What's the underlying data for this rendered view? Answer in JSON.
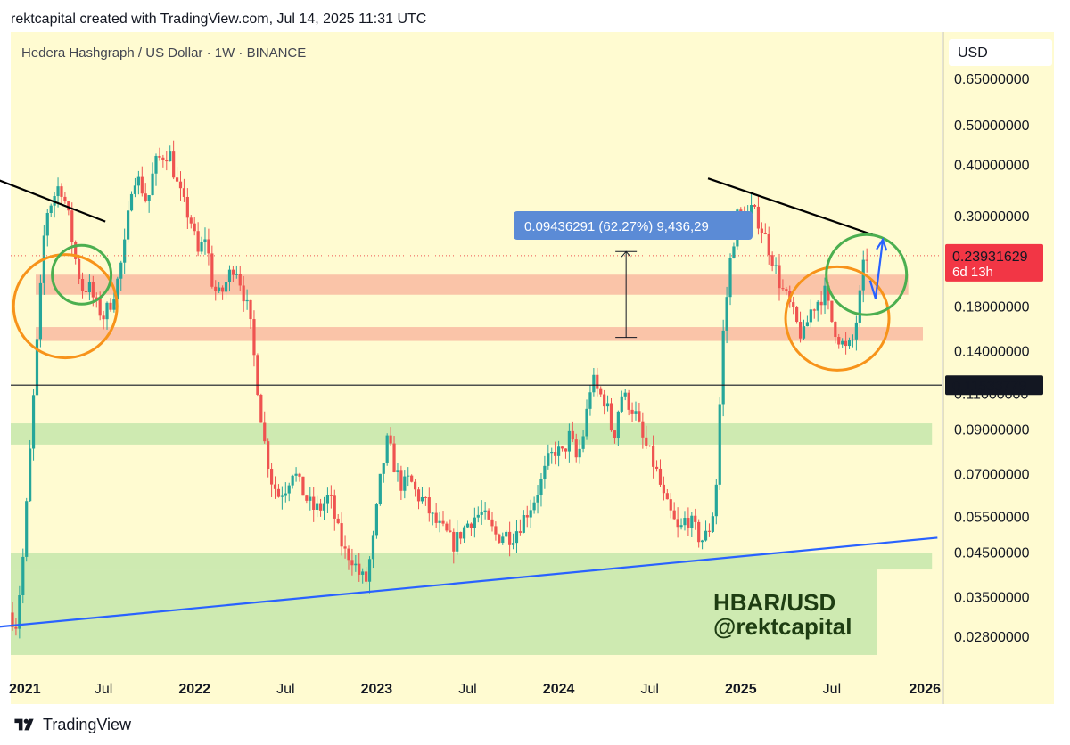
{
  "header": {
    "caption": "rektcapital created with TradingView.com, Jul 14, 2025 11:31 UTC"
  },
  "footer": {
    "brand": "TradingView"
  },
  "chart_data": {
    "type": "candlestick",
    "symbol_label": "Hedera Hashgraph / US Dollar · 1W · BINANCE",
    "currency": "USD",
    "scale": "log",
    "y_ticks": [
      {
        "label": "0.65000000",
        "value": 0.65
      },
      {
        "label": "0.50000000",
        "value": 0.5
      },
      {
        "label": "0.40000000",
        "value": 0.4
      },
      {
        "label": "0.30000000",
        "value": 0.3
      },
      {
        "label": "0.18000000",
        "value": 0.18
      },
      {
        "label": "0.14000000",
        "value": 0.14
      },
      {
        "label": "0.11000000",
        "value": 0.11
      },
      {
        "label": "0.09000000",
        "value": 0.09
      },
      {
        "label": "0.07000000",
        "value": 0.07
      },
      {
        "label": "0.05500000",
        "value": 0.055
      },
      {
        "label": "0.04500000",
        "value": 0.045
      },
      {
        "label": "0.03500000",
        "value": 0.035
      },
      {
        "label": "0.02800000",
        "value": 0.028
      }
    ],
    "x_ticks": [
      {
        "label": "2021",
        "t": 2021.0
      },
      {
        "label": "Jul",
        "t": 2021.5
      },
      {
        "label": "2022",
        "t": 2022.0
      },
      {
        "label": "Jul",
        "t": 2022.5
      },
      {
        "label": "2023",
        "t": 2023.0
      },
      {
        "label": "Jul",
        "t": 2023.5
      },
      {
        "label": "2024",
        "t": 2024.0
      },
      {
        "label": "Jul",
        "t": 2024.5
      },
      {
        "label": "2025",
        "t": 2025.0
      },
      {
        "label": "Jul",
        "t": 2025.5
      },
      {
        "label": "2026",
        "t": 2026.0
      }
    ],
    "price_path": [
      [
        2021.0,
        0.032
      ],
      [
        2021.04,
        0.03
      ],
      [
        2021.08,
        0.045
      ],
      [
        2021.12,
        0.085
      ],
      [
        2021.16,
        0.16
      ],
      [
        2021.2,
        0.3
      ],
      [
        2021.24,
        0.33
      ],
      [
        2021.28,
        0.36
      ],
      [
        2021.32,
        0.31
      ],
      [
        2021.36,
        0.24
      ],
      [
        2021.4,
        0.2
      ],
      [
        2021.44,
        0.2
      ],
      [
        2021.48,
        0.18
      ],
      [
        2021.52,
        0.17
      ],
      [
        2021.56,
        0.185
      ],
      [
        2021.6,
        0.21
      ],
      [
        2021.64,
        0.26
      ],
      [
        2021.68,
        0.38
      ],
      [
        2021.72,
        0.36
      ],
      [
        2021.76,
        0.32
      ],
      [
        2021.8,
        0.4
      ],
      [
        2021.84,
        0.42
      ],
      [
        2021.88,
        0.43
      ],
      [
        2021.92,
        0.36
      ],
      [
        2021.96,
        0.32
      ],
      [
        2022.0,
        0.29
      ],
      [
        2022.04,
        0.24
      ],
      [
        2022.08,
        0.27
      ],
      [
        2022.12,
        0.2
      ],
      [
        2022.16,
        0.19
      ],
      [
        2022.2,
        0.21
      ],
      [
        2022.24,
        0.23
      ],
      [
        2022.28,
        0.2
      ],
      [
        2022.32,
        0.17
      ],
      [
        2022.36,
        0.12
      ],
      [
        2022.4,
        0.085
      ],
      [
        2022.44,
        0.068
      ],
      [
        2022.48,
        0.062
      ],
      [
        2022.52,
        0.065
      ],
      [
        2022.56,
        0.072
      ],
      [
        2022.6,
        0.065
      ],
      [
        2022.64,
        0.06
      ],
      [
        2022.68,
        0.057
      ],
      [
        2022.72,
        0.058
      ],
      [
        2022.76,
        0.062
      ],
      [
        2022.8,
        0.052
      ],
      [
        2022.84,
        0.045
      ],
      [
        2022.88,
        0.044
      ],
      [
        2022.92,
        0.04
      ],
      [
        2022.96,
        0.038
      ],
      [
        2023.0,
        0.048
      ],
      [
        2023.04,
        0.068
      ],
      [
        2023.08,
        0.085
      ],
      [
        2023.12,
        0.072
      ],
      [
        2023.16,
        0.065
      ],
      [
        2023.2,
        0.068
      ],
      [
        2023.24,
        0.062
      ],
      [
        2023.28,
        0.06
      ],
      [
        2023.32,
        0.055
      ],
      [
        2023.36,
        0.052
      ],
      [
        2023.4,
        0.05
      ],
      [
        2023.44,
        0.047
      ],
      [
        2023.48,
        0.05
      ],
      [
        2023.52,
        0.053
      ],
      [
        2023.56,
        0.055
      ],
      [
        2023.6,
        0.056
      ],
      [
        2023.64,
        0.052
      ],
      [
        2023.68,
        0.049
      ],
      [
        2023.72,
        0.05
      ],
      [
        2023.76,
        0.049
      ],
      [
        2023.8,
        0.052
      ],
      [
        2023.84,
        0.056
      ],
      [
        2023.88,
        0.06
      ],
      [
        2023.92,
        0.066
      ],
      [
        2023.96,
        0.075
      ],
      [
        2024.0,
        0.08
      ],
      [
        2024.04,
        0.078
      ],
      [
        2024.08,
        0.087
      ],
      [
        2024.12,
        0.075
      ],
      [
        2024.16,
        0.09
      ],
      [
        2024.2,
        0.12
      ],
      [
        2024.24,
        0.11
      ],
      [
        2024.28,
        0.105
      ],
      [
        2024.32,
        0.085
      ],
      [
        2024.36,
        0.11
      ],
      [
        2024.4,
        0.105
      ],
      [
        2024.44,
        0.098
      ],
      [
        2024.48,
        0.085
      ],
      [
        2024.52,
        0.078
      ],
      [
        2024.56,
        0.07
      ],
      [
        2024.6,
        0.06
      ],
      [
        2024.64,
        0.055
      ],
      [
        2024.68,
        0.05
      ],
      [
        2024.72,
        0.055
      ],
      [
        2024.76,
        0.052
      ],
      [
        2024.8,
        0.048
      ],
      [
        2024.84,
        0.05
      ],
      [
        2024.88,
        0.06
      ],
      [
        2024.92,
        0.15
      ],
      [
        2024.96,
        0.23
      ],
      [
        2025.0,
        0.3
      ],
      [
        2025.04,
        0.29
      ],
      [
        2025.08,
        0.31
      ],
      [
        2025.12,
        0.29
      ],
      [
        2025.16,
        0.26
      ],
      [
        2025.2,
        0.23
      ],
      [
        2025.24,
        0.2
      ],
      [
        2025.28,
        0.185
      ],
      [
        2025.32,
        0.165
      ],
      [
        2025.36,
        0.15
      ],
      [
        2025.4,
        0.175
      ],
      [
        2025.44,
        0.185
      ],
      [
        2025.48,
        0.195
      ],
      [
        2025.52,
        0.165
      ],
      [
        2025.56,
        0.15
      ],
      [
        2025.6,
        0.14
      ],
      [
        2025.64,
        0.15
      ],
      [
        2025.68,
        0.2
      ],
      [
        2025.7,
        0.239
      ]
    ],
    "current_price": {
      "label": "0.23931629",
      "value": 0.23931629,
      "countdown": "6d 13h"
    },
    "reference_line": {
      "label": "0.11533779",
      "value": 0.11533779
    },
    "measurement": {
      "label": "0.09436291 (62.27%) 9,436,29",
      "from": 0.151,
      "to": 0.245,
      "t": 2024.37
    },
    "watermark": {
      "line1": "HBAR/USD",
      "line2": "@rektcapital"
    },
    "red_zones": [
      {
        "t0": 2020.85,
        "t1": 2025.92,
        "y_low": 0.192,
        "y_high": 0.215
      },
      {
        "t0": 2020.85,
        "t1": 2026.0,
        "y_low": 0.148,
        "y_high": 0.16
      }
    ],
    "green_zones": [
      {
        "t0": 2020.81,
        "t1": 2026.05,
        "y_low": 0.0825,
        "y_high": 0.093
      },
      {
        "t0": 2020.81,
        "t1": 2026.05,
        "y_low": 0.0408,
        "y_high": 0.0448
      },
      {
        "t0": 2020.81,
        "t1": 2025.75,
        "y_low": 0.0252,
        "y_high": 0.0408
      }
    ],
    "trendlines": [
      {
        "color": "#000000",
        "points": [
          [
            2020.9,
            0.37
          ],
          [
            2021.51,
            0.29
          ]
        ]
      },
      {
        "color": "#000000",
        "points": [
          [
            2024.82,
            0.37
          ],
          [
            2025.77,
            0.265
          ]
        ]
      },
      {
        "color": "#2962ff",
        "points": [
          [
            2020.81,
            0.0292
          ],
          [
            2026.08,
            0.0488
          ]
        ]
      }
    ],
    "projection_arrow": {
      "color": "#2962ff",
      "points": [
        [
          2025.71,
          0.208
        ],
        [
          2025.74,
          0.188
        ],
        [
          2025.78,
          0.262
        ]
      ]
    },
    "circles": [
      {
        "color": "#f7931a",
        "t": 2021.29,
        "y": 0.18,
        "r": 58
      },
      {
        "color": "#4caf50",
        "t": 2021.38,
        "y": 0.215,
        "r": 33
      },
      {
        "color": "#f7931a",
        "t": 2025.53,
        "y": 0.168,
        "r": 58
      },
      {
        "color": "#4caf50",
        "t": 2025.69,
        "y": 0.215,
        "r": 45
      }
    ]
  }
}
